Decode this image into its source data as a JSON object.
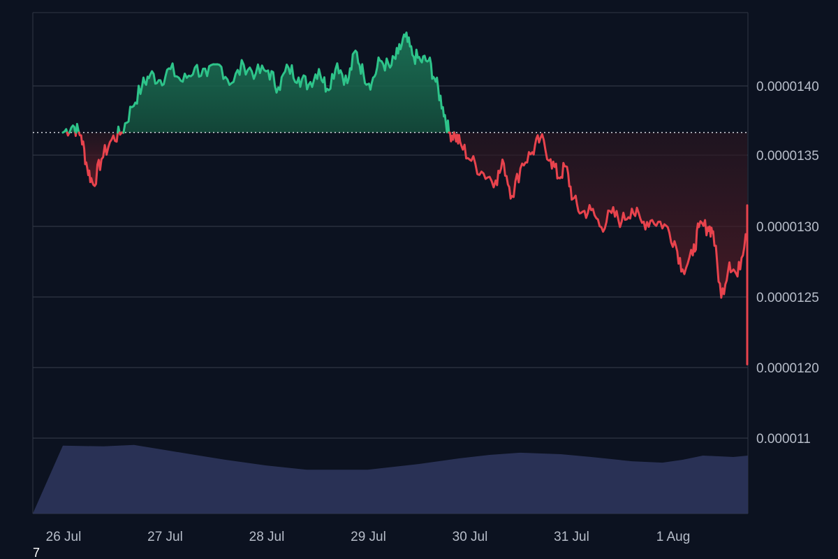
{
  "chart_data": {
    "type": "area",
    "baseline": 1.367e-05,
    "y_ticks": [
      "0.0000140",
      "0.0000135",
      "0.0000130",
      "0.0000125",
      "0.0000120",
      "0.000011"
    ],
    "x_ticks": [
      "26 Jul",
      "27 Jul",
      "28 Jul",
      "29 Jul",
      "30 Jul",
      "31 Jul",
      "1 Aug"
    ],
    "grid": true,
    "colors": {
      "up": "#2ec48a",
      "down": "#e8434d",
      "volume": "#2b3458",
      "grid": "#2f3644",
      "background": "#0c1220"
    },
    "series": [
      {
        "values": [
          [
            0.0,
            1.367e-05
          ],
          [
            0.1,
            1.372e-05
          ],
          [
            0.18,
            1.365e-05
          ],
          [
            0.24,
            1.342e-05
          ],
          [
            0.3,
            1.33e-05
          ],
          [
            0.38,
            1.348e-05
          ],
          [
            0.48,
            1.362e-05
          ],
          [
            0.58,
            1.367e-05
          ],
          [
            0.68,
            1.385e-05
          ],
          [
            0.78,
            1.4e-05
          ],
          [
            0.86,
            1.408e-05
          ],
          [
            0.96,
            1.404e-05
          ],
          [
            1.06,
            1.412e-05
          ],
          [
            1.18,
            1.403e-05
          ],
          [
            1.3,
            1.413e-05
          ],
          [
            1.42,
            1.407e-05
          ],
          [
            1.54,
            1.415e-05
          ],
          [
            1.66,
            1.402e-05
          ],
          [
            1.78,
            1.415e-05
          ],
          [
            1.9,
            1.409e-05
          ],
          [
            2.02,
            1.411e-05
          ],
          [
            2.12,
            1.399e-05
          ],
          [
            2.22,
            1.413e-05
          ],
          [
            2.32,
            1.406e-05
          ],
          [
            2.42,
            1.401e-05
          ],
          [
            2.52,
            1.412e-05
          ],
          [
            2.6,
            1.398e-05
          ],
          [
            2.7,
            1.416e-05
          ],
          [
            2.8,
            1.402e-05
          ],
          [
            2.88,
            1.425e-05
          ],
          [
            2.96,
            1.408e-05
          ],
          [
            3.04,
            1.402e-05
          ],
          [
            3.12,
            1.418e-05
          ],
          [
            3.22,
            1.413e-05
          ],
          [
            3.3,
            1.423e-05
          ],
          [
            3.37,
            1.435e-05
          ],
          [
            3.44,
            1.422e-05
          ],
          [
            3.52,
            1.418e-05
          ],
          [
            3.6,
            1.418e-05
          ],
          [
            3.67,
            1.403e-05
          ],
          [
            3.74,
            1.385e-05
          ],
          [
            3.8,
            1.367e-05
          ],
          [
            3.86,
            1.365e-05
          ],
          [
            3.92,
            1.358e-05
          ],
          [
            4.02,
            1.347e-05
          ],
          [
            4.14,
            1.338e-05
          ],
          [
            4.26,
            1.333e-05
          ],
          [
            4.34,
            1.345e-05
          ],
          [
            4.42,
            1.322e-05
          ],
          [
            4.52,
            1.345e-05
          ],
          [
            4.62,
            1.353e-05
          ],
          [
            4.7,
            1.363e-05
          ],
          [
            4.8,
            1.348e-05
          ],
          [
            4.88,
            1.335e-05
          ],
          [
            4.95,
            1.343e-05
          ],
          [
            5.02,
            1.32e-05
          ],
          [
            5.1,
            1.31e-05
          ],
          [
            5.2,
            1.312e-05
          ],
          [
            5.3,
            1.3e-05
          ],
          [
            5.4,
            1.31e-05
          ],
          [
            5.5,
            1.304e-05
          ],
          [
            5.6,
            1.313e-05
          ],
          [
            5.7,
            1.303e-05
          ],
          [
            5.8,
            1.305e-05
          ],
          [
            5.92,
            1.302e-05
          ],
          [
            6.02,
            1.29e-05
          ],
          [
            6.1,
            1.27e-05
          ],
          [
            6.2,
            1.28e-05
          ],
          [
            6.26,
            1.3e-05
          ],
          [
            6.35,
            1.3e-05
          ],
          [
            6.4,
            1.297e-05
          ],
          [
            6.48,
            1.25e-05
          ],
          [
            6.56,
            1.275e-05
          ],
          [
            6.64,
            1.265e-05
          ],
          [
            6.72,
            1.295e-05
          ],
          [
            6.82,
            1.303e-05
          ],
          [
            6.92,
            1.308e-05
          ],
          [
            7.02,
            1.31e-05
          ],
          [
            7.1,
            1.315e-05
          ],
          [
            7.2,
            1.303e-05
          ],
          [
            7.28,
            1.285e-05
          ],
          [
            7.35,
            1.268e-05
          ],
          [
            7.42,
            1.285e-05
          ],
          [
            7.48,
            1.3e-05
          ],
          [
            7.56,
            1.275e-05
          ],
          [
            7.64,
            1.258e-05
          ],
          [
            7.74,
            1.24e-05
          ],
          [
            7.82,
            1.228e-05
          ],
          [
            7.9,
            1.24e-05
          ],
          [
            7.96,
            1.248e-05
          ],
          [
            8.04,
            1.236e-05
          ],
          [
            8.12,
            1.225e-05
          ],
          [
            8.2,
            1.208e-05
          ],
          [
            8.3,
            1.21e-05
          ],
          [
            8.38,
            1.21e-05
          ],
          [
            8.44,
            1.233e-05
          ]
        ]
      }
    ],
    "volume": [
      [
        0.0,
        0.96
      ],
      [
        0.4,
        0.95
      ],
      [
        0.7,
        0.97
      ],
      [
        1.0,
        0.9
      ],
      [
        1.3,
        0.83
      ],
      [
        1.6,
        0.76
      ],
      [
        2.0,
        0.68
      ],
      [
        2.4,
        0.62
      ],
      [
        3.0,
        0.62
      ],
      [
        3.5,
        0.7
      ],
      [
        3.9,
        0.78
      ],
      [
        4.2,
        0.83
      ],
      [
        4.5,
        0.86
      ],
      [
        4.9,
        0.84
      ],
      [
        5.2,
        0.8
      ],
      [
        5.6,
        0.74
      ],
      [
        5.9,
        0.72
      ],
      [
        6.1,
        0.76
      ],
      [
        6.3,
        0.82
      ],
      [
        6.6,
        0.8
      ],
      [
        7.0,
        0.82
      ],
      [
        7.4,
        0.76
      ],
      [
        7.7,
        0.75
      ],
      [
        7.9,
        0.67
      ],
      [
        8.2,
        0.76
      ],
      [
        8.44,
        0.83
      ]
    ],
    "footnote": "7"
  }
}
